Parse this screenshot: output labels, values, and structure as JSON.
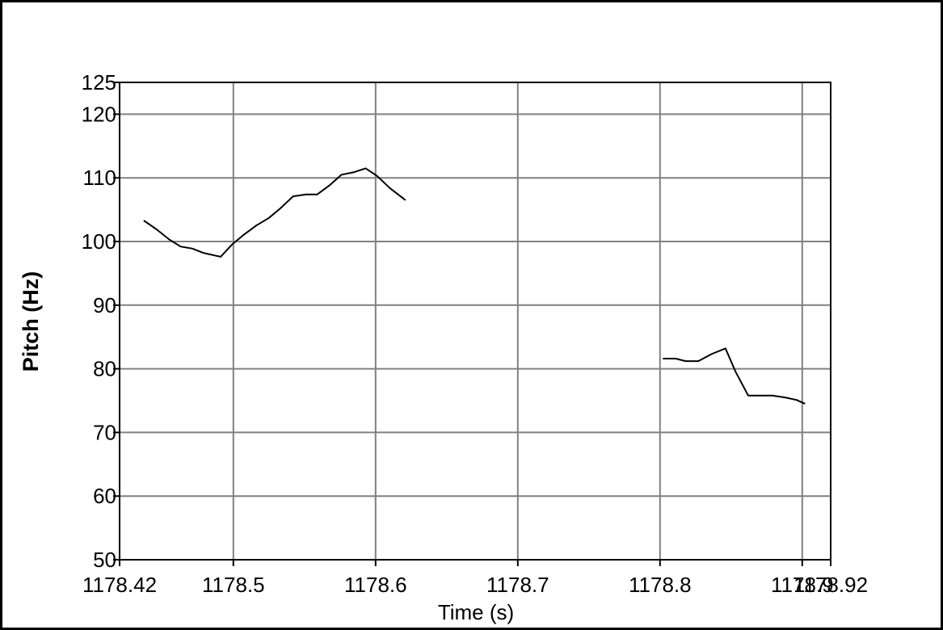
{
  "chart_data": {
    "type": "line",
    "title": "",
    "xlabel": "Time (s)",
    "ylabel": "Pitch (Hz)",
    "xlim": [
      1178.42,
      1178.92
    ],
    "ylim": [
      50,
      125
    ],
    "grid": true,
    "x_ticks": [
      {
        "value": 1178.42,
        "label": "1178.42"
      },
      {
        "value": 1178.5,
        "label": "1178.5"
      },
      {
        "value": 1178.6,
        "label": "1178.6"
      },
      {
        "value": 1178.7,
        "label": "1178.7"
      },
      {
        "value": 1178.8,
        "label": "1178.8"
      },
      {
        "value": 1178.9,
        "label": "1178.9"
      },
      {
        "value": 1178.92,
        "label": "1178.92"
      }
    ],
    "x_gridlines": [
      1178.5,
      1178.6,
      1178.7,
      1178.8,
      1178.9
    ],
    "y_ticks": [
      {
        "value": 50,
        "label": "50"
      },
      {
        "value": 60,
        "label": "60"
      },
      {
        "value": 70,
        "label": "70"
      },
      {
        "value": 80,
        "label": "80"
      },
      {
        "value": 90,
        "label": "90"
      },
      {
        "value": 100,
        "label": "100"
      },
      {
        "value": 110,
        "label": "110"
      },
      {
        "value": 120,
        "label": "120"
      },
      {
        "value": 125,
        "label": "125"
      }
    ],
    "y_gridlines": [
      60,
      70,
      80,
      90,
      100,
      110,
      120
    ],
    "series": [
      {
        "color": "#000000",
        "segments": [
          [
            [
              1178.437,
              103.3
            ],
            [
              1178.446,
              101.9
            ],
            [
              1178.455,
              100.3
            ],
            [
              1178.463,
              99.2
            ],
            [
              1178.471,
              98.9
            ],
            [
              1178.479,
              98.2
            ],
            [
              1178.487,
              97.8
            ],
            [
              1178.491,
              97.6
            ],
            [
              1178.499,
              99.5
            ],
            [
              1178.507,
              101.0
            ],
            [
              1178.516,
              102.5
            ],
            [
              1178.525,
              103.7
            ],
            [
              1178.533,
              105.2
            ],
            [
              1178.542,
              107.1
            ],
            [
              1178.551,
              107.4
            ],
            [
              1178.559,
              107.4
            ],
            [
              1178.568,
              108.9
            ],
            [
              1178.576,
              110.5
            ],
            [
              1178.585,
              110.9
            ],
            [
              1178.593,
              111.5
            ],
            [
              1178.601,
              110.3
            ],
            [
              1178.61,
              108.4
            ],
            [
              1178.621,
              106.5
            ]
          ],
          [
            [
              1178.802,
              81.6
            ],
            [
              1178.811,
              81.6
            ],
            [
              1178.818,
              81.2
            ],
            [
              1178.827,
              81.2
            ],
            [
              1178.836,
              82.3
            ],
            [
              1178.846,
              83.2
            ],
            [
              1178.853,
              79.6
            ],
            [
              1178.862,
              75.8
            ],
            [
              1178.87,
              75.8
            ],
            [
              1178.879,
              75.8
            ],
            [
              1178.888,
              75.5
            ],
            [
              1178.896,
              75.1
            ],
            [
              1178.902,
              74.5
            ]
          ]
        ]
      }
    ]
  }
}
